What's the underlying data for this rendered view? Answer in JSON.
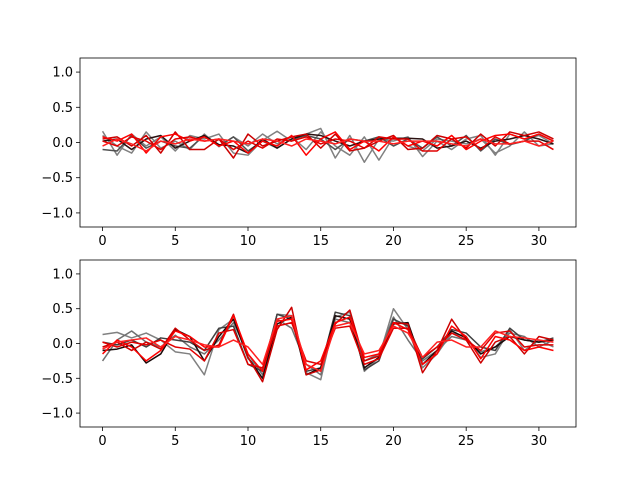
{
  "chart_data": [
    {
      "type": "line",
      "title": "",
      "xlabel": "",
      "ylabel": "",
      "xlim": [
        -1.55,
        32.55
      ],
      "ylim": [
        -1.2,
        1.2
      ],
      "x_ticks": [
        0,
        5,
        10,
        15,
        20,
        25,
        30
      ],
      "x_tick_labels": [
        "0",
        "5",
        "10",
        "15",
        "20",
        "25",
        "30"
      ],
      "y_ticks": [
        -1.0,
        -0.5,
        0.0,
        0.5,
        1.0
      ],
      "y_tick_labels": [
        "−1.0",
        "−0.5",
        "0.0",
        "0.5",
        "1.0"
      ],
      "grid": false,
      "x": [
        0,
        1,
        2,
        3,
        4,
        5,
        6,
        7,
        8,
        9,
        10,
        11,
        12,
        13,
        14,
        15,
        16,
        17,
        18,
        19,
        20,
        21,
        22,
        23,
        24,
        25,
        26,
        27,
        28,
        29,
        30,
        31
      ],
      "series": [
        {
          "color": "#808080",
          "values": [
            0.16,
            -0.18,
            0.12,
            -0.05,
            0.08,
            -0.12,
            0.1,
            0.05,
            0.12,
            -0.15,
            -0.18,
            0.03,
            0.16,
            0.02,
            0.12,
            0.2,
            -0.22,
            0.1,
            -0.28,
            0.05,
            0.02,
            0.08,
            -0.2,
            0.02,
            -0.1,
            0.05,
            0.1,
            -0.18,
            0.12,
            0.05,
            0.1,
            -0.02
          ]
        },
        {
          "color": "#808080",
          "values": [
            0.1,
            -0.05,
            -0.15,
            0.15,
            -0.08,
            0.02,
            -0.1,
            0.12,
            -0.06,
            0.08,
            -0.05,
            0.12,
            -0.02,
            0.08,
            -0.1,
            0.15,
            -0.05,
            -0.18,
            0.08,
            -0.25,
            0.08,
            -0.05,
            -0.12,
            0.05,
            0.02,
            -0.02,
            0.05,
            -0.15,
            -0.05,
            0.15,
            -0.05,
            -0.02
          ]
        },
        {
          "color": "#505050",
          "values": [
            -0.1,
            -0.12,
            0.1,
            -0.08,
            0.02,
            -0.05,
            -0.08,
            0.1,
            -0.05,
            0.08,
            -0.12,
            0.02,
            -0.08,
            0.05,
            0.1,
            0.05,
            -0.1,
            0.05,
            0.02,
            0.08,
            -0.05,
            0.05,
            -0.08,
            0.08,
            -0.05,
            0.1,
            -0.12,
            0.05,
            -0.03,
            0.02,
            0.12,
            0.02
          ]
        },
        {
          "color": "#2a1010",
          "values": [
            0.02,
            0.05,
            -0.1,
            0.05,
            0.1,
            -0.08,
            0.02,
            0.1,
            -0.03,
            -0.05,
            -0.15,
            0.05,
            -0.08,
            0.05,
            0.12,
            0.1,
            0.02,
            -0.05,
            0.02,
            0.05,
            0.06,
            0.06,
            0.05,
            -0.08,
            -0.05,
            0.02,
            -0.08,
            0.02,
            0.05,
            0.1,
            0.05,
            -0.02
          ]
        },
        {
          "color": "#cc0000",
          "values": [
            0.05,
            0.08,
            -0.05,
            0.1,
            -0.15,
            0.15,
            -0.1,
            -0.1,
            0.05,
            -0.22,
            0.12,
            -0.05,
            0.02,
            0.08,
            0.12,
            -0.08,
            0.12,
            -0.12,
            -0.08,
            0.02,
            0.1,
            -0.1,
            -0.08,
            0.1,
            0.05,
            -0.08,
            0.12,
            -0.05,
            0.15,
            0.1,
            0.15,
            0.05
          ]
        },
        {
          "color": "#ff0000",
          "values": [
            0.08,
            0.02,
            0.12,
            -0.15,
            0.08,
            0.12,
            0.02,
            0.08,
            -0.05,
            0.02,
            -0.15,
            0.02,
            -0.05,
            0.1,
            -0.18,
            0.05,
            0.15,
            -0.1,
            0.02,
            -0.12,
            0.08,
            -0.05,
            0.02,
            -0.05,
            0.1,
            -0.1,
            0.02,
            0.1,
            0.12,
            0.05,
            0.12,
            0.02
          ]
        },
        {
          "color": "#e00000",
          "values": [
            0.02,
            -0.05,
            0.08,
            0.02,
            -0.1,
            0.05,
            0.08,
            0.02,
            0.05,
            -0.1,
            0.02,
            -0.08,
            0.05,
            0.02,
            0.08,
            -0.02,
            0.05,
            0.02,
            -0.08,
            0.08,
            0.05,
            0.05,
            -0.12,
            -0.12,
            0.05,
            0.08,
            -0.1,
            0.08,
            -0.02,
            0.02,
            0.02,
            -0.1
          ]
        },
        {
          "color": "#ff2020",
          "values": [
            -0.05,
            0.05,
            -0.02,
            -0.12,
            0.02,
            -0.02,
            0.05,
            0.02,
            0.05,
            0.02,
            -0.02,
            0.05,
            0.02,
            -0.05,
            0.05,
            0.02,
            -0.02,
            0.05,
            0.02,
            0.02,
            -0.02,
            0.02,
            0.02,
            0.02,
            -0.02,
            -0.05,
            0.05,
            -0.02,
            -0.02,
            0.02,
            -0.05,
            0.02
          ]
        }
      ]
    },
    {
      "type": "line",
      "title": "",
      "xlabel": "",
      "ylabel": "",
      "xlim": [
        -1.55,
        32.55
      ],
      "ylim": [
        -1.2,
        1.2
      ],
      "x_ticks": [
        0,
        5,
        10,
        15,
        20,
        25,
        30
      ],
      "x_tick_labels": [
        "0",
        "5",
        "10",
        "15",
        "20",
        "25",
        "30"
      ],
      "y_ticks": [
        -1.0,
        -0.5,
        0.0,
        0.5,
        1.0
      ],
      "y_tick_labels": [
        "−1.0",
        "−0.5",
        "0.0",
        "0.5",
        "1.0"
      ],
      "grid": false,
      "x": [
        0,
        1,
        2,
        3,
        4,
        5,
        6,
        7,
        8,
        9,
        10,
        11,
        12,
        13,
        14,
        15,
        16,
        17,
        18,
        19,
        20,
        21,
        22,
        23,
        24,
        25,
        26,
        27,
        28,
        29,
        30,
        31
      ],
      "series": [
        {
          "color": "#808080",
          "values": [
            0.13,
            0.16,
            0.08,
            0.15,
            0.05,
            -0.12,
            -0.15,
            -0.45,
            0.2,
            0.35,
            -0.22,
            -0.38,
            0.42,
            0.4,
            -0.42,
            -0.52,
            0.38,
            0.45,
            -0.4,
            -0.2,
            0.5,
            0.2,
            -0.35,
            -0.15,
            0.15,
            0.1,
            -0.2,
            -0.15,
            0.2,
            -0.1,
            0.05,
            -0.05
          ]
        },
        {
          "color": "#707070",
          "values": [
            -0.25,
            0.05,
            0.18,
            0.02,
            -0.05,
            0.12,
            -0.05,
            -0.15,
            0.05,
            0.3,
            -0.15,
            -0.45,
            0.35,
            0.22,
            -0.3,
            -0.45,
            0.35,
            0.3,
            -0.25,
            -0.15,
            0.38,
            0.05,
            -0.25,
            -0.1,
            0.1,
            0.05,
            -0.12,
            -0.05,
            0.15,
            0.1,
            -0.05,
            0.05
          ]
        },
        {
          "color": "#404040",
          "values": [
            0.02,
            -0.02,
            0.05,
            -0.05,
            0.08,
            0.05,
            0.02,
            -0.1,
            0.22,
            0.25,
            -0.3,
            -0.4,
            0.42,
            0.35,
            -0.4,
            -0.35,
            0.45,
            0.4,
            -0.38,
            -0.25,
            0.35,
            0.25,
            -0.22,
            -0.05,
            0.2,
            0.15,
            -0.05,
            -0.1,
            0.22,
            0.05,
            0.02,
            0.08
          ]
        },
        {
          "color": "#1a0a0a",
          "values": [
            -0.1,
            -0.08,
            -0.02,
            -0.28,
            -0.15,
            0.2,
            0.1,
            -0.25,
            0.1,
            0.35,
            -0.2,
            -0.5,
            0.28,
            0.38,
            -0.45,
            -0.35,
            0.4,
            0.35,
            -0.35,
            -0.2,
            0.28,
            0.3,
            -0.3,
            -0.1,
            0.18,
            0.08,
            -0.15,
            -0.05,
            0.1,
            0.05,
            0.02,
            0.05
          ]
        },
        {
          "color": "#cc0000",
          "values": [
            -0.05,
            0.02,
            -0.1,
            0.02,
            -0.08,
            0.22,
            0.05,
            -0.1,
            -0.02,
            0.42,
            -0.2,
            -0.55,
            0.2,
            0.52,
            -0.45,
            -0.38,
            0.28,
            0.48,
            -0.25,
            -0.18,
            0.3,
            0.28,
            -0.42,
            -0.1,
            0.35,
            0.05,
            -0.28,
            0.02,
            0.1,
            -0.15,
            0.1,
            0.05
          ]
        },
        {
          "color": "#ff0000",
          "values": [
            -0.15,
            0.05,
            -0.05,
            -0.25,
            -0.1,
            0.18,
            0.1,
            -0.05,
            -0.05,
            0.4,
            -0.15,
            -0.4,
            0.32,
            0.35,
            -0.38,
            -0.25,
            0.3,
            0.38,
            -0.2,
            -0.15,
            0.3,
            0.2,
            -0.3,
            -0.15,
            0.25,
            0.1,
            -0.22,
            0.1,
            0.05,
            -0.1,
            -0.05,
            -0.1
          ]
        },
        {
          "color": "#e00000",
          "values": [
            0.02,
            -0.05,
            0.02,
            -0.02,
            0.05,
            -0.05,
            -0.08,
            -0.25,
            0.15,
            0.2,
            -0.3,
            -0.35,
            0.25,
            0.3,
            -0.25,
            -0.3,
            0.22,
            0.25,
            -0.3,
            -0.22,
            0.22,
            0.22,
            -0.2,
            -0.05,
            0.15,
            0.05,
            -0.1,
            0.15,
            0.18,
            -0.05,
            -0.02,
            -0.02
          ]
        },
        {
          "color": "#ff2020",
          "values": [
            -0.08,
            0.02,
            0.05,
            0.08,
            -0.05,
            0.1,
            0.05,
            -0.02,
            -0.05,
            0.05,
            -0.05,
            -0.3,
            0.35,
            0.4,
            -0.3,
            -0.4,
            0.25,
            0.3,
            -0.15,
            -0.1,
            0.25,
            0.15,
            -0.2,
            0.02,
            0.05,
            -0.05,
            -0.05,
            0.18,
            0.1,
            0.08,
            0.05,
            0.02
          ]
        }
      ]
    }
  ]
}
